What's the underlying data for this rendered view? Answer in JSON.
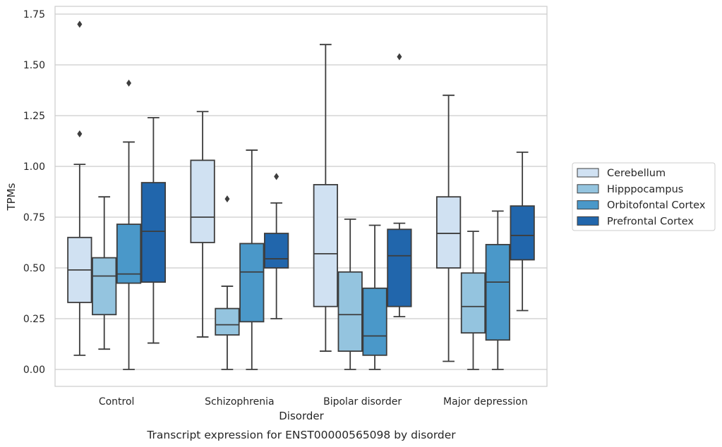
{
  "chart_data": {
    "type": "box",
    "caption": "Transcript expression for ENST00000565098 by disorder",
    "xlabel": "Disorder",
    "ylabel": "TPMs",
    "ylim": [
      -0.08,
      1.78
    ],
    "yticks": [
      "0.00",
      "0.25",
      "0.50",
      "0.75",
      "1.00",
      "1.25",
      "1.50",
      "1.75"
    ],
    "grid": "horizontal",
    "legend_position": "right",
    "categories": [
      "Control",
      "Schizophrenia",
      "Bipolar disorder",
      "Major depression"
    ],
    "series": [
      {
        "name": "Cerebellum",
        "color": "#d0e1f2",
        "boxes": [
          {
            "whislo": 0.07,
            "q1": 0.33,
            "med": 0.49,
            "q3": 0.65,
            "whishi": 1.01,
            "fliers": [
              1.16,
              1.7
            ]
          },
          {
            "whislo": 0.16,
            "q1": 0.625,
            "med": 0.75,
            "q3": 1.03,
            "whishi": 1.27,
            "fliers": []
          },
          {
            "whislo": 0.09,
            "q1": 0.31,
            "med": 0.57,
            "q3": 0.91,
            "whishi": 1.6,
            "fliers": []
          },
          {
            "whislo": 0.04,
            "q1": 0.5,
            "med": 0.67,
            "q3": 0.85,
            "whishi": 1.35,
            "fliers": []
          }
        ]
      },
      {
        "name": "Hipppocampus",
        "color": "#94c4df",
        "boxes": [
          {
            "whislo": 0.1,
            "q1": 0.27,
            "med": 0.46,
            "q3": 0.55,
            "whishi": 0.85,
            "fliers": []
          },
          {
            "whislo": 0.0,
            "q1": 0.17,
            "med": 0.22,
            "q3": 0.3,
            "whishi": 0.41,
            "fliers": [
              0.84
            ]
          },
          {
            "whislo": 0.0,
            "q1": 0.09,
            "med": 0.27,
            "q3": 0.48,
            "whishi": 0.74,
            "fliers": []
          },
          {
            "whislo": 0.0,
            "q1": 0.18,
            "med": 0.31,
            "q3": 0.475,
            "whishi": 0.68,
            "fliers": []
          }
        ]
      },
      {
        "name": "Orbitofontal Cortex",
        "color": "#4a98c9",
        "boxes": [
          {
            "whislo": 0.0,
            "q1": 0.425,
            "med": 0.47,
            "q3": 0.715,
            "whishi": 1.12,
            "fliers": [
              1.41
            ]
          },
          {
            "whislo": 0.0,
            "q1": 0.235,
            "med": 0.48,
            "q3": 0.62,
            "whishi": 1.08,
            "fliers": []
          },
          {
            "whislo": 0.0,
            "q1": 0.07,
            "med": 0.165,
            "q3": 0.4,
            "whishi": 0.71,
            "fliers": []
          },
          {
            "whislo": 0.0,
            "q1": 0.145,
            "med": 0.43,
            "q3": 0.615,
            "whishi": 0.78,
            "fliers": []
          }
        ]
      },
      {
        "name": "Prefrontal Cortex",
        "color": "#2166ac",
        "boxes": [
          {
            "whislo": 0.13,
            "q1": 0.43,
            "med": 0.68,
            "q3": 0.92,
            "whishi": 1.24,
            "fliers": []
          },
          {
            "whislo": 0.25,
            "q1": 0.5,
            "med": 0.545,
            "q3": 0.67,
            "whishi": 0.82,
            "fliers": [
              0.95
            ]
          },
          {
            "whislo": 0.26,
            "q1": 0.31,
            "med": 0.56,
            "q3": 0.69,
            "whishi": 0.72,
            "fliers": [
              1.54
            ]
          },
          {
            "whislo": 0.29,
            "q1": 0.54,
            "med": 0.66,
            "q3": 0.805,
            "whishi": 1.07,
            "fliers": []
          }
        ]
      }
    ]
  }
}
